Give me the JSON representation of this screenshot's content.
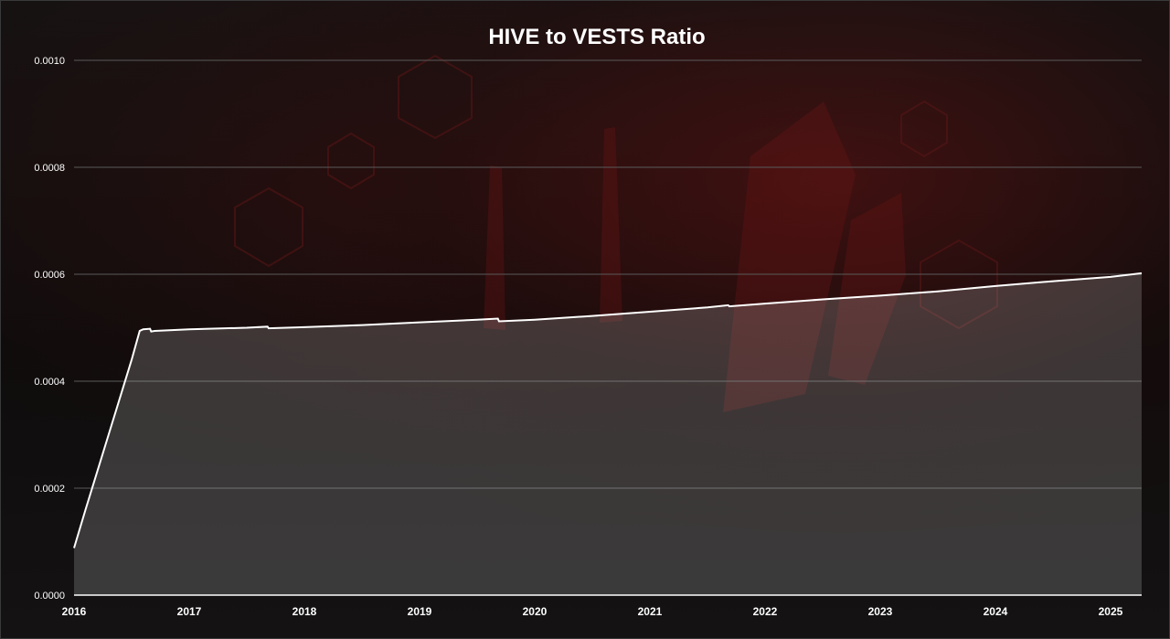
{
  "chart_data": {
    "type": "area",
    "title": "HIVE to VESTS Ratio",
    "xlabel": "",
    "ylabel": "",
    "xlim": [
      2016.0,
      2025.27
    ],
    "ylim": [
      0,
      0.001
    ],
    "y_ticks": [
      "0.0000",
      "0.0002",
      "0.0004",
      "0.0006",
      "0.0008",
      "0.0010"
    ],
    "x_ticks": [
      "2016",
      "2017",
      "2018",
      "2019",
      "2020",
      "2021",
      "2022",
      "2023",
      "2024",
      "2025"
    ],
    "grid": true,
    "legend": "none",
    "colors": {
      "line": "#ffffff",
      "area": "#cfcfcf",
      "grid": "#5a5a5a",
      "text": "#ffffff"
    },
    "series": [
      {
        "x": [
          2016.0,
          2016.1,
          2016.3,
          2016.5,
          2016.57,
          2016.6,
          2016.66,
          2016.67,
          2016.7,
          2017.0,
          2017.5,
          2017.68,
          2017.69,
          2018.0,
          2018.5,
          2019.0,
          2019.5,
          2019.68,
          2019.69,
          2020.0,
          2020.5,
          2021.0,
          2021.5,
          2021.68,
          2021.69,
          2022.0,
          2022.5,
          2023.0,
          2023.5,
          2024.0,
          2024.5,
          2025.0,
          2025.27
        ],
        "values": [
          8.8e-05,
          0.00016,
          0.0003,
          0.00044,
          0.000494,
          0.000497,
          0.000498,
          0.000493,
          0.000494,
          0.000497,
          0.0005,
          0.000502,
          0.000499,
          0.000501,
          0.000505,
          0.00051,
          0.000515,
          0.000517,
          0.000512,
          0.000515,
          0.000522,
          0.00053,
          0.000538,
          0.000542,
          0.00054,
          0.000545,
          0.000553,
          0.00056,
          0.000568,
          0.000578,
          0.000587,
          0.000595,
          0.000602
        ]
      }
    ]
  }
}
